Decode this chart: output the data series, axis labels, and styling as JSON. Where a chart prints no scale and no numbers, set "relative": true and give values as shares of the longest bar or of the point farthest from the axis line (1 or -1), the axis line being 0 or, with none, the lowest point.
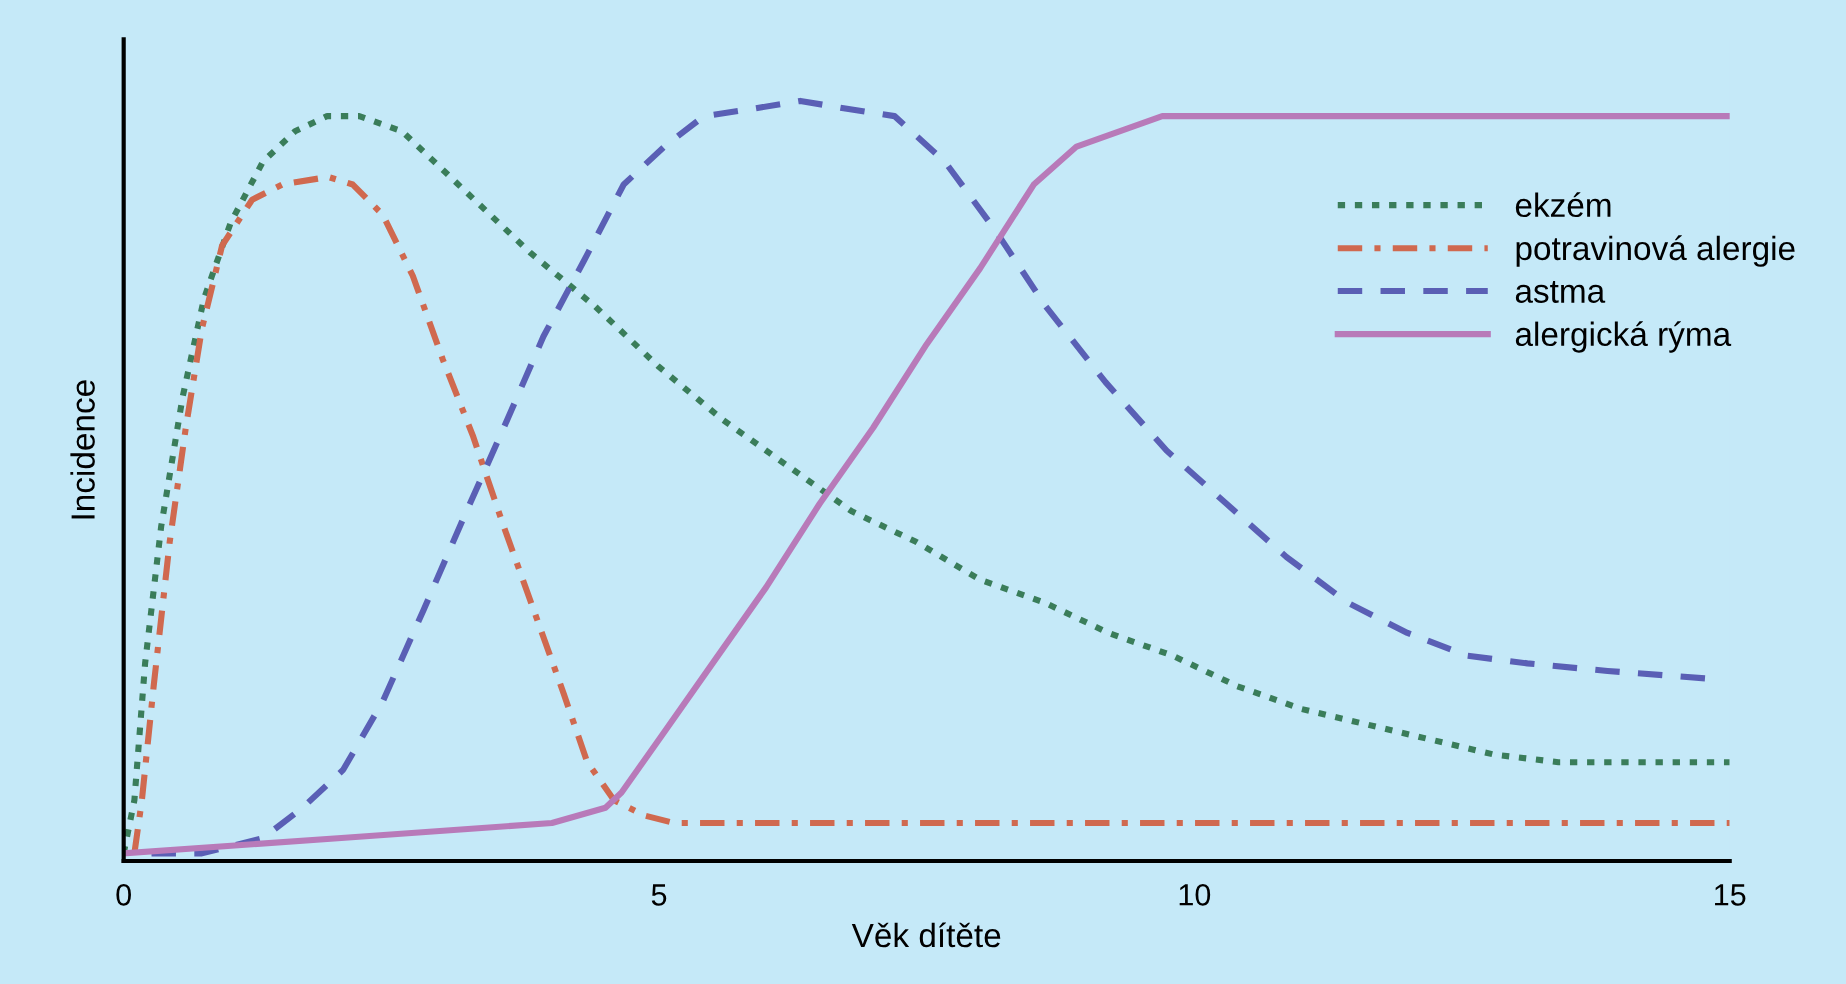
{
  "chart_data": {
    "type": "line",
    "xlabel": "Věk dítěte",
    "ylabel": "Incidence",
    "relative": true,
    "xlim": [
      0,
      15
    ],
    "xticks": [
      0,
      5,
      10,
      15
    ],
    "grid": false,
    "legend": "top right",
    "marker": "none",
    "series": [
      {
        "name": "ekzém",
        "color": "#3a7d5a",
        "line_style": "dotted",
        "x": [
          0,
          0.1,
          0.2,
          0.35,
          0.55,
          0.75,
          1.0,
          1.3,
          1.6,
          1.9,
          2.2,
          2.6,
          3.2,
          3.8,
          4.4,
          5.0,
          5.6,
          6.2,
          6.8,
          7.4,
          8.0,
          8.6,
          9.2,
          9.8,
          10.4,
          11.0,
          11.6,
          12.2,
          12.8,
          13.4,
          14.0,
          14.5,
          15
        ],
        "values": [
          0.01,
          0.08,
          0.26,
          0.44,
          0.61,
          0.74,
          0.84,
          0.92,
          0.96,
          0.98,
          0.98,
          0.96,
          0.88,
          0.8,
          0.73,
          0.65,
          0.58,
          0.52,
          0.46,
          0.42,
          0.37,
          0.34,
          0.3,
          0.27,
          0.23,
          0.2,
          0.18,
          0.16,
          0.14,
          0.13,
          0.13,
          0.13,
          0.13
        ]
      },
      {
        "name": "potravinová alergie",
        "color": "#d0694f",
        "line_style": "dashdot",
        "x": [
          0.1,
          0.17,
          0.28,
          0.43,
          0.58,
          0.73,
          0.92,
          1.2,
          1.48,
          1.91,
          2.14,
          2.42,
          2.7,
          2.98,
          3.26,
          3.55,
          3.83,
          4.11,
          4.33,
          4.58,
          4.86,
          5.14,
          6,
          8,
          10,
          12,
          15
        ],
        "values": [
          0.01,
          0.08,
          0.23,
          0.42,
          0.57,
          0.7,
          0.81,
          0.87,
          0.89,
          0.9,
          0.89,
          0.85,
          0.77,
          0.66,
          0.56,
          0.44,
          0.33,
          0.22,
          0.13,
          0.08,
          0.06,
          0.05,
          0.05,
          0.05,
          0.05,
          0.05,
          0.05
        ]
      },
      {
        "name": "astma",
        "color": "#5a5fb5",
        "line_style": "dashed",
        "x": [
          0.26,
          0.73,
          1.3,
          1.67,
          2.05,
          2.42,
          2.8,
          3.17,
          3.55,
          3.92,
          4.3,
          4.67,
          5.05,
          5.42,
          5.89,
          6.32,
          6.74,
          7.2,
          7.67,
          8.14,
          8.61,
          9.17,
          9.74,
          10.3,
          10.86,
          11.43,
          11.99,
          12.55,
          13.11,
          13.86,
          14.8
        ],
        "values": [
          0.01,
          0.01,
          0.03,
          0.07,
          0.12,
          0.21,
          0.33,
          0.45,
          0.57,
          0.69,
          0.79,
          0.89,
          0.94,
          0.98,
          0.99,
          1,
          0.99,
          0.98,
          0.92,
          0.83,
          0.73,
          0.63,
          0.54,
          0.47,
          0.4,
          0.34,
          0.3,
          0.27,
          0.26,
          0.25,
          0.24
        ]
      },
      {
        "name": "alergická rýma",
        "color": "#b87ab9",
        "line_style": "solid",
        "x": [
          0,
          2,
          4,
          4.5,
          4.65,
          5,
          5.5,
          6,
          6.5,
          7,
          7.5,
          8,
          8.5,
          8.9,
          9.3,
          9.7,
          10.2,
          10.6,
          15
        ],
        "values": [
          0.01,
          0.03,
          0.05,
          0.07,
          0.09,
          0.16,
          0.26,
          0.36,
          0.47,
          0.57,
          0.68,
          0.78,
          0.89,
          0.94,
          0.96,
          0.98,
          0.98,
          0.98,
          0.98
        ]
      }
    ]
  }
}
